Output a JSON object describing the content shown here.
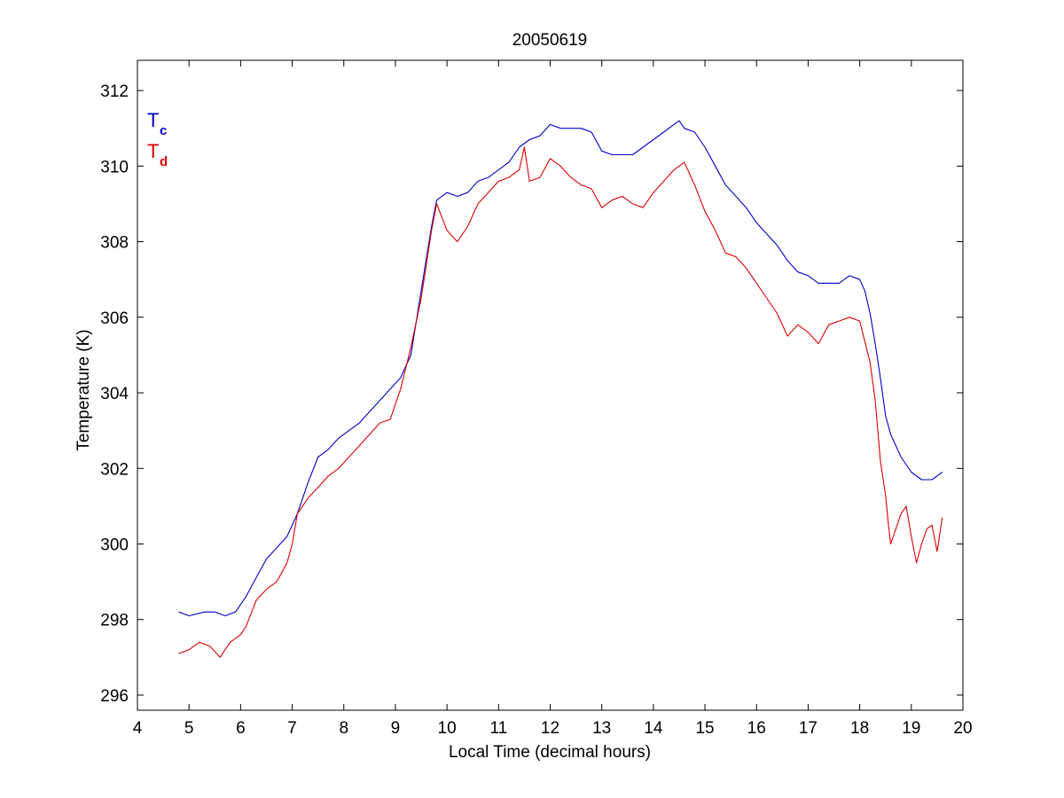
{
  "chart_data": {
    "type": "line",
    "title": "20050619",
    "xlabel": "Local Time (decimal hours)",
    "ylabel": "Temperature (K)",
    "xlim": [
      4,
      20
    ],
    "ylim": [
      295.6,
      312.8
    ],
    "xticks": [
      4,
      5,
      6,
      7,
      8,
      9,
      10,
      11,
      12,
      13,
      14,
      15,
      16,
      17,
      18,
      19,
      20
    ],
    "yticks": [
      296,
      298,
      300,
      302,
      304,
      306,
      308,
      310,
      312
    ],
    "grid": false,
    "legend_placement": "top-left",
    "series": [
      {
        "legend_main": "T",
        "legend_sub": "c",
        "color": "#0000cc",
        "x": [
          4.8,
          5.0,
          5.3,
          5.5,
          5.7,
          5.9,
          6.1,
          6.3,
          6.5,
          6.7,
          6.9,
          7.1,
          7.3,
          7.5,
          7.7,
          7.9,
          8.1,
          8.3,
          8.5,
          8.7,
          8.9,
          9.1,
          9.3,
          9.5,
          9.7,
          9.8,
          10.0,
          10.2,
          10.4,
          10.6,
          10.8,
          11.0,
          11.2,
          11.4,
          11.6,
          11.8,
          12.0,
          12.2,
          12.4,
          12.6,
          12.8,
          13.0,
          13.2,
          13.4,
          13.6,
          13.8,
          14.0,
          14.2,
          14.4,
          14.5,
          14.6,
          14.8,
          15.0,
          15.2,
          15.4,
          15.6,
          15.8,
          16.0,
          16.2,
          16.4,
          16.6,
          16.8,
          17.0,
          17.2,
          17.4,
          17.6,
          17.8,
          18.0,
          18.1,
          18.2,
          18.3,
          18.4,
          18.5,
          18.6,
          18.8,
          19.0,
          19.2,
          19.4,
          19.5,
          19.6
        ],
        "y": [
          298.2,
          298.1,
          298.2,
          298.2,
          298.1,
          298.2,
          298.6,
          299.1,
          299.6,
          299.9,
          300.2,
          300.8,
          301.6,
          302.3,
          302.5,
          302.8,
          303.0,
          303.2,
          303.5,
          303.8,
          304.1,
          304.4,
          305.0,
          306.7,
          308.4,
          309.1,
          309.3,
          309.2,
          309.3,
          309.6,
          309.7,
          309.9,
          310.1,
          310.5,
          310.7,
          310.8,
          311.1,
          311.0,
          311.0,
          311.0,
          310.9,
          310.4,
          310.3,
          310.3,
          310.3,
          310.5,
          310.7,
          310.9,
          311.1,
          311.2,
          311.0,
          310.9,
          310.5,
          310.0,
          309.5,
          309.2,
          308.9,
          308.5,
          308.2,
          307.9,
          307.5,
          307.2,
          307.1,
          306.9,
          306.9,
          306.9,
          307.1,
          307.0,
          306.7,
          306.1,
          305.3,
          304.4,
          303.4,
          302.9,
          302.3,
          301.9,
          301.7,
          301.7,
          301.8,
          301.9
        ]
      },
      {
        "legend_main": "T",
        "legend_sub": "d",
        "color": "#dd0000",
        "x": [
          4.8,
          5.0,
          5.2,
          5.4,
          5.6,
          5.8,
          6.0,
          6.1,
          6.3,
          6.5,
          6.7,
          6.9,
          7.0,
          7.1,
          7.3,
          7.5,
          7.7,
          7.9,
          8.1,
          8.3,
          8.5,
          8.7,
          8.9,
          9.1,
          9.3,
          9.5,
          9.7,
          9.8,
          10.0,
          10.2,
          10.4,
          10.6,
          10.8,
          11.0,
          11.2,
          11.4,
          11.5,
          11.6,
          11.8,
          12.0,
          12.2,
          12.4,
          12.6,
          12.8,
          13.0,
          13.2,
          13.4,
          13.6,
          13.8,
          14.0,
          14.2,
          14.4,
          14.6,
          14.7,
          14.8,
          15.0,
          15.2,
          15.4,
          15.6,
          15.8,
          16.0,
          16.2,
          16.4,
          16.6,
          16.8,
          17.0,
          17.2,
          17.4,
          17.6,
          17.8,
          18.0,
          18.2,
          18.3,
          18.4,
          18.5,
          18.55,
          18.6,
          18.7,
          18.8,
          18.9,
          18.95,
          19.0,
          19.1,
          19.2,
          19.3,
          19.4,
          19.5,
          19.6
        ],
        "y": [
          297.1,
          297.2,
          297.4,
          297.3,
          297.0,
          297.4,
          297.6,
          297.8,
          298.5,
          298.8,
          299.0,
          299.5,
          300.0,
          300.8,
          301.2,
          301.5,
          301.8,
          302.0,
          302.3,
          302.6,
          302.9,
          303.2,
          303.3,
          304.1,
          305.2,
          306.5,
          308.3,
          309.0,
          308.3,
          308.0,
          308.4,
          309.0,
          309.3,
          309.6,
          309.7,
          309.9,
          310.5,
          309.6,
          309.7,
          310.2,
          310.0,
          309.7,
          309.5,
          309.4,
          308.9,
          309.1,
          309.2,
          309.0,
          308.9,
          309.3,
          309.6,
          309.9,
          310.1,
          309.8,
          309.5,
          308.8,
          308.3,
          307.7,
          307.6,
          307.3,
          306.9,
          306.5,
          306.1,
          305.5,
          305.8,
          305.6,
          305.3,
          305.8,
          305.9,
          306.0,
          305.9,
          304.8,
          303.8,
          302.2,
          301.3,
          300.6,
          300.0,
          300.4,
          300.8,
          301.0,
          300.6,
          300.2,
          299.5,
          300.0,
          300.4,
          300.5,
          299.8,
          300.7
        ]
      }
    ]
  }
}
